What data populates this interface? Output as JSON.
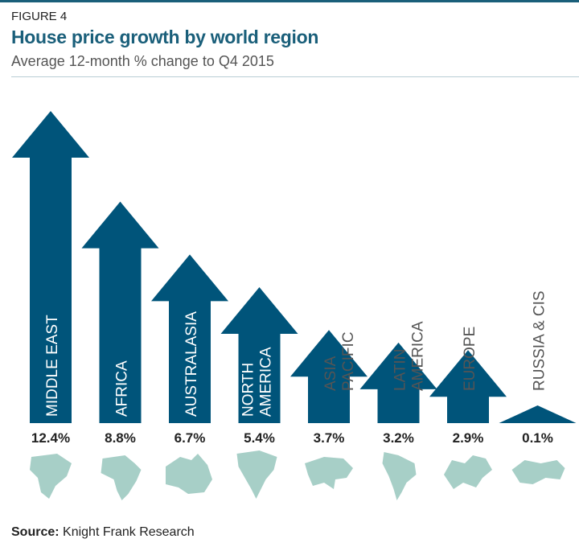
{
  "figure_label": "FIGURE 4",
  "colors": {
    "arrow": "#00547a",
    "map": "#a7cfc7",
    "title": "#1a5f7a",
    "label_inside": "#ffffff",
    "label_outside": "#555555"
  },
  "source": {
    "prefix": "Source:",
    "text": "Knight Frank Research"
  },
  "chart_data": {
    "type": "bar",
    "title": "House price growth by world region",
    "subtitle": "Average 12-month % change to Q4 2015",
    "unit": "%",
    "categories": [
      [
        "MIDDLE EAST"
      ],
      [
        "AFRICA"
      ],
      [
        "AUSTRALASIA"
      ],
      [
        "NORTH",
        "AMERICA"
      ],
      [
        "ASIA",
        "PACIFIC"
      ],
      [
        "LATIN",
        "AMERICA"
      ],
      [
        "EUROPE"
      ],
      [
        "RUSSIA & CIS"
      ]
    ],
    "values": [
      12.4,
      8.8,
      6.7,
      5.4,
      3.7,
      3.2,
      2.9,
      0.1
    ],
    "value_labels": [
      "12.4%",
      "8.8%",
      "6.7%",
      "5.4%",
      "3.7%",
      "3.2%",
      "2.9%",
      "0.1%"
    ],
    "map_icons": [
      "middle-east",
      "africa",
      "australasia",
      "north-america",
      "asia-pacific",
      "latin-america",
      "europe",
      "russia-cis"
    ],
    "legend": "none",
    "grid": false
  }
}
